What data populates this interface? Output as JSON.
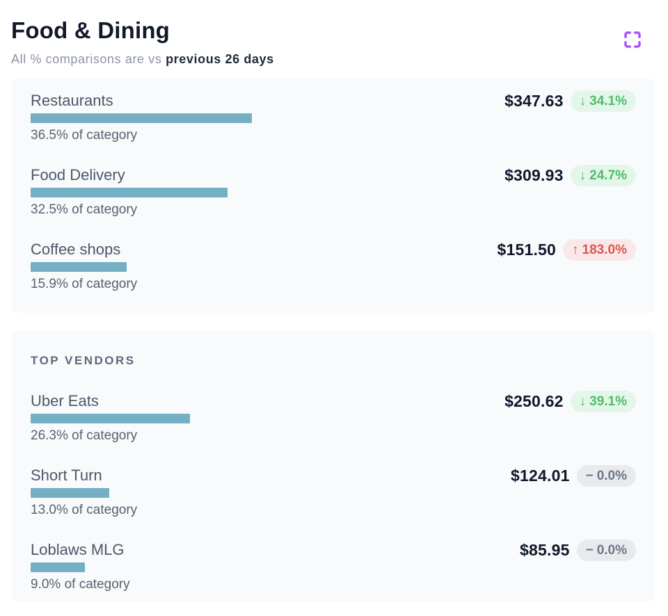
{
  "header": {
    "title": "Food & Dining",
    "subtitle_prefix": "All % comparisons are vs ",
    "subtitle_emphasis": "previous 26 days"
  },
  "colors": {
    "accent_purple": "#a855f7",
    "bar": "#74afc3",
    "card_background": "#f8fafc",
    "badge_down_text": "#4dbd68",
    "badge_down_bg": "#e4f6e9",
    "badge_up_text": "#dc5752",
    "badge_up_bg": "#f9e8e7",
    "badge_flat_text": "#6e7888",
    "badge_flat_bg": "#e8eaee"
  },
  "categories_card": {
    "rows": [
      {
        "label": "Restaurants",
        "amount": "$347.63",
        "arrow": "↓",
        "change": "34.1%",
        "direction": "down",
        "pct_of_category": 36.5,
        "pct_label": "36.5% of category"
      },
      {
        "label": "Food Delivery",
        "amount": "$309.93",
        "arrow": "↓",
        "change": "24.7%",
        "direction": "down",
        "pct_of_category": 32.5,
        "pct_label": "32.5% of category"
      },
      {
        "label": "Coffee shops",
        "amount": "$151.50",
        "arrow": "↑",
        "change": "183.0%",
        "direction": "up",
        "pct_of_category": 15.9,
        "pct_label": "15.9% of category"
      }
    ]
  },
  "vendors_card": {
    "heading": "TOP VENDORS",
    "rows": [
      {
        "label": "Uber Eats",
        "amount": "$250.62",
        "arrow": "↓",
        "change": "39.1%",
        "direction": "down",
        "pct_of_category": 26.3,
        "pct_label": "26.3% of category"
      },
      {
        "label": "Short Turn",
        "amount": "$124.01",
        "arrow": "−",
        "change": "0.0%",
        "direction": "flat",
        "pct_of_category": 13.0,
        "pct_label": "13.0% of category"
      },
      {
        "label": "Loblaws MLG",
        "amount": "$85.95",
        "arrow": "−",
        "change": "0.0%",
        "direction": "flat",
        "pct_of_category": 9.0,
        "pct_label": "9.0% of category"
      }
    ]
  }
}
